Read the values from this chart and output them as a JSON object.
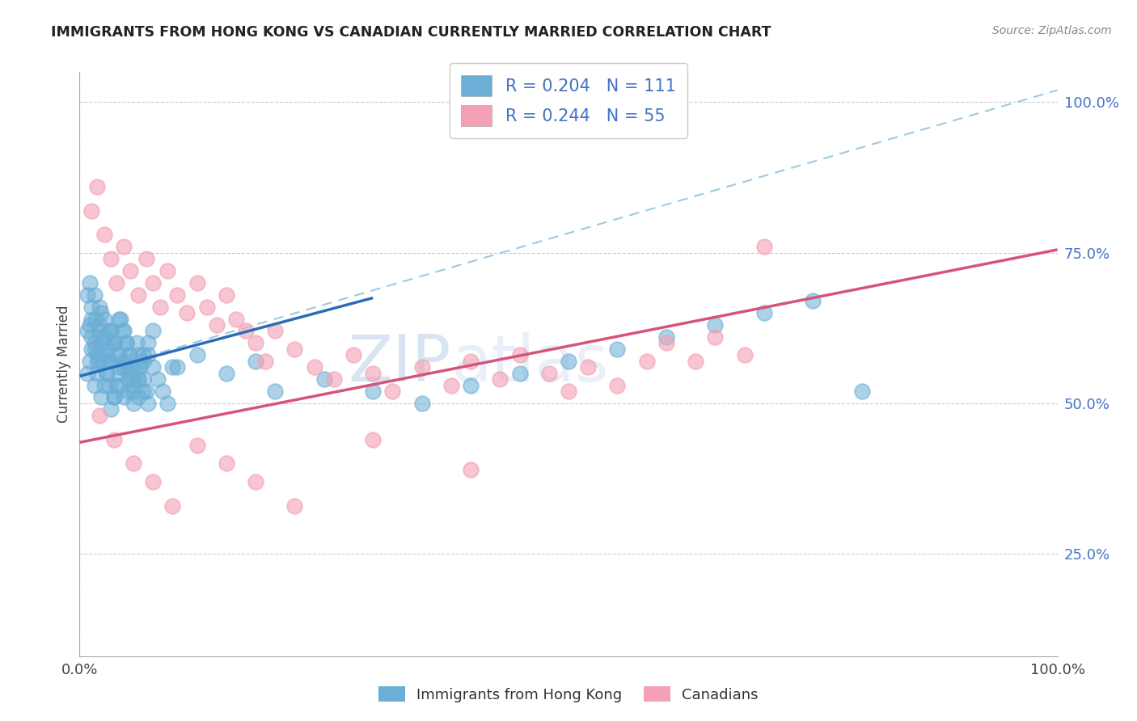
{
  "title": "IMMIGRANTS FROM HONG KONG VS CANADIAN CURRENTLY MARRIED CORRELATION CHART",
  "source_text": "Source: ZipAtlas.com",
  "ylabel": "Currently Married",
  "legend_r1": "R = 0.204",
  "legend_n1": "N = 111",
  "legend_r2": "R = 0.244",
  "legend_n2": "N = 55",
  "blue_color": "#6baed6",
  "pink_color": "#f4a0b5",
  "blue_line_color": "#2b6cb8",
  "pink_line_color": "#d6537a",
  "dashed_line_color": "#9ecae1",
  "grid_color": "#cccccc",
  "watermark_zip": "ZIP",
  "watermark_atlas": "atlas",
  "xlim": [
    0.0,
    1.0
  ],
  "ylim": [
    0.08,
    1.05
  ],
  "yticks": [
    0.25,
    0.5,
    0.75,
    1.0
  ],
  "ytick_labels": [
    "25.0%",
    "50.0%",
    "75.0%",
    "100.0%"
  ],
  "xticks": [
    0.0,
    1.0
  ],
  "xtick_labels": [
    "0.0%",
    "100.0%"
  ],
  "blue_line_x": [
    0.0,
    0.3
  ],
  "blue_line_y": [
    0.545,
    0.675
  ],
  "pink_line_x": [
    0.0,
    1.0
  ],
  "pink_line_y": [
    0.435,
    0.755
  ],
  "dashed_line_x": [
    0.0,
    1.0
  ],
  "dashed_line_y": [
    0.545,
    1.02
  ],
  "blue_x": [
    0.008,
    0.012,
    0.015,
    0.018,
    0.02,
    0.022,
    0.025,
    0.028,
    0.03,
    0.032,
    0.035,
    0.038,
    0.04,
    0.042,
    0.045,
    0.048,
    0.05,
    0.052,
    0.055,
    0.058,
    0.06,
    0.062,
    0.065,
    0.068,
    0.07,
    0.008,
    0.01,
    0.012,
    0.015,
    0.018,
    0.02,
    0.022,
    0.025,
    0.028,
    0.03,
    0.032,
    0.035,
    0.038,
    0.04,
    0.045,
    0.05,
    0.055,
    0.06,
    0.065,
    0.07,
    0.075,
    0.08,
    0.085,
    0.09,
    0.095,
    0.01,
    0.012,
    0.015,
    0.018,
    0.02,
    0.022,
    0.025,
    0.028,
    0.03,
    0.035,
    0.04,
    0.045,
    0.05,
    0.055,
    0.06,
    0.065,
    0.008,
    0.012,
    0.016,
    0.02,
    0.024,
    0.028,
    0.032,
    0.036,
    0.04,
    0.044,
    0.048,
    0.052,
    0.056,
    0.06,
    0.01,
    0.015,
    0.02,
    0.025,
    0.03,
    0.035,
    0.04,
    0.045,
    0.05,
    0.055,
    0.06,
    0.065,
    0.07,
    0.075,
    0.1,
    0.12,
    0.15,
    0.18,
    0.2,
    0.25,
    0.3,
    0.35,
    0.4,
    0.45,
    0.5,
    0.55,
    0.6,
    0.65,
    0.7,
    0.75,
    0.8
  ],
  "blue_y": [
    0.62,
    0.64,
    0.6,
    0.58,
    0.63,
    0.65,
    0.61,
    0.59,
    0.57,
    0.62,
    0.6,
    0.58,
    0.56,
    0.64,
    0.62,
    0.6,
    0.58,
    0.56,
    0.54,
    0.6,
    0.58,
    0.56,
    0.54,
    0.52,
    0.58,
    0.55,
    0.57,
    0.59,
    0.53,
    0.55,
    0.57,
    0.51,
    0.53,
    0.55,
    0.57,
    0.49,
    0.51,
    0.53,
    0.55,
    0.57,
    0.52,
    0.5,
    0.54,
    0.52,
    0.5,
    0.56,
    0.54,
    0.52,
    0.5,
    0.56,
    0.63,
    0.61,
    0.59,
    0.57,
    0.61,
    0.59,
    0.57,
    0.55,
    0.53,
    0.51,
    0.53,
    0.51,
    0.55,
    0.53,
    0.51,
    0.57,
    0.68,
    0.66,
    0.64,
    0.62,
    0.6,
    0.58,
    0.62,
    0.6,
    0.64,
    0.62,
    0.6,
    0.58,
    0.56,
    0.54,
    0.7,
    0.68,
    0.66,
    0.64,
    0.62,
    0.6,
    0.58,
    0.56,
    0.54,
    0.52,
    0.56,
    0.58,
    0.6,
    0.62,
    0.56,
    0.58,
    0.55,
    0.57,
    0.52,
    0.54,
    0.52,
    0.5,
    0.53,
    0.55,
    0.57,
    0.59,
    0.61,
    0.63,
    0.65,
    0.67,
    0.52
  ],
  "pink_x": [
    0.012,
    0.018,
    0.025,
    0.032,
    0.038,
    0.045,
    0.052,
    0.06,
    0.068,
    0.075,
    0.082,
    0.09,
    0.1,
    0.11,
    0.12,
    0.13,
    0.14,
    0.15,
    0.16,
    0.17,
    0.18,
    0.19,
    0.2,
    0.22,
    0.24,
    0.26,
    0.28,
    0.3,
    0.32,
    0.35,
    0.38,
    0.4,
    0.43,
    0.45,
    0.48,
    0.5,
    0.52,
    0.55,
    0.58,
    0.6,
    0.63,
    0.65,
    0.68,
    0.7,
    0.02,
    0.035,
    0.055,
    0.075,
    0.095,
    0.12,
    0.15,
    0.18,
    0.22,
    0.3,
    0.4
  ],
  "pink_y": [
    0.82,
    0.86,
    0.78,
    0.74,
    0.7,
    0.76,
    0.72,
    0.68,
    0.74,
    0.7,
    0.66,
    0.72,
    0.68,
    0.65,
    0.7,
    0.66,
    0.63,
    0.68,
    0.64,
    0.62,
    0.6,
    0.57,
    0.62,
    0.59,
    0.56,
    0.54,
    0.58,
    0.55,
    0.52,
    0.56,
    0.53,
    0.57,
    0.54,
    0.58,
    0.55,
    0.52,
    0.56,
    0.53,
    0.57,
    0.6,
    0.57,
    0.61,
    0.58,
    0.76,
    0.48,
    0.44,
    0.4,
    0.37,
    0.33,
    0.43,
    0.4,
    0.37,
    0.33,
    0.44,
    0.39
  ]
}
